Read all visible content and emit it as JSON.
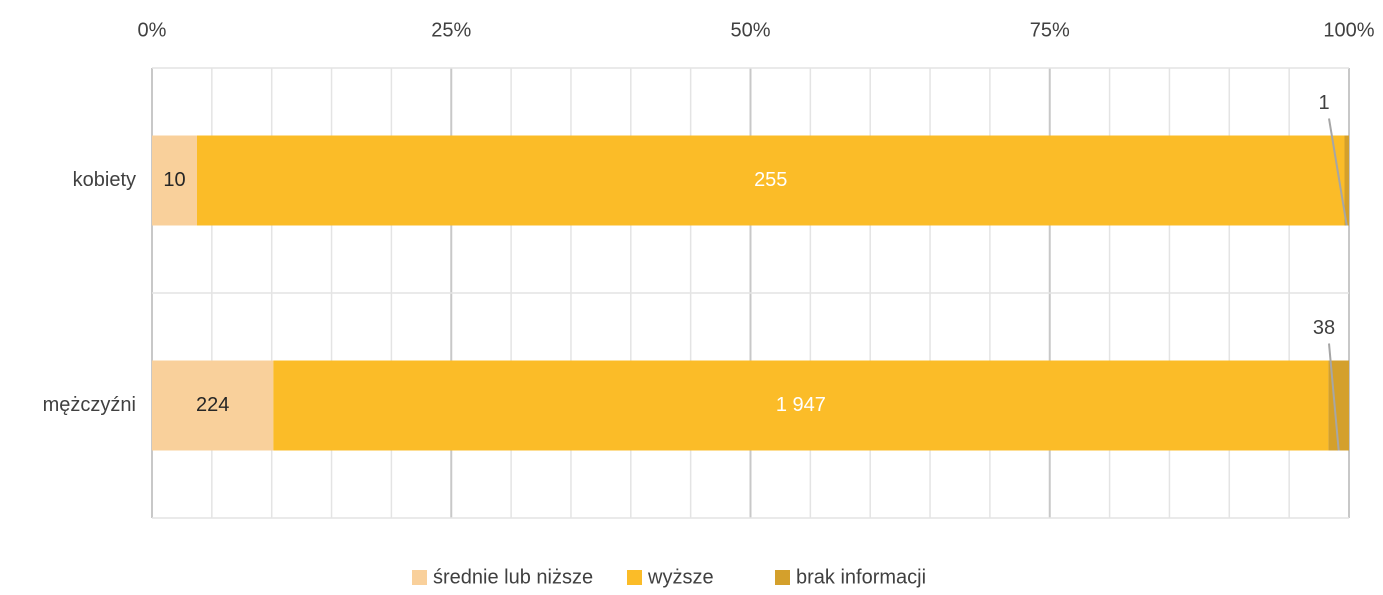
{
  "chart_data": {
    "type": "bar",
    "orientation": "horizontal",
    "stacked": "percent",
    "categories": [
      "kobiety",
      "mężczyźni"
    ],
    "series": [
      {
        "name": "średnie lub niższe",
        "color": "#f9d09b",
        "values": [
          10,
          224
        ]
      },
      {
        "name": "wyższe",
        "color": "#fbbc28",
        "values": [
          255,
          1947
        ],
        "value_labels": [
          "255",
          "1 947"
        ]
      },
      {
        "name": "brak informacji",
        "color": "#d4a02c",
        "values": [
          1,
          38
        ]
      }
    ],
    "xlim": [
      0,
      100
    ],
    "xticks": [
      {
        "value": 0,
        "label": "0%"
      },
      {
        "value": 25,
        "label": "25%"
      },
      {
        "value": 50,
        "label": "50%"
      },
      {
        "value": 75,
        "label": "75%"
      },
      {
        "value": 100,
        "label": "100%"
      }
    ],
    "xminorticks": [
      5,
      10,
      15,
      20,
      30,
      35,
      40,
      45,
      55,
      60,
      65,
      70,
      80,
      85,
      90,
      95
    ],
    "grid": true,
    "legend": "bottom"
  }
}
